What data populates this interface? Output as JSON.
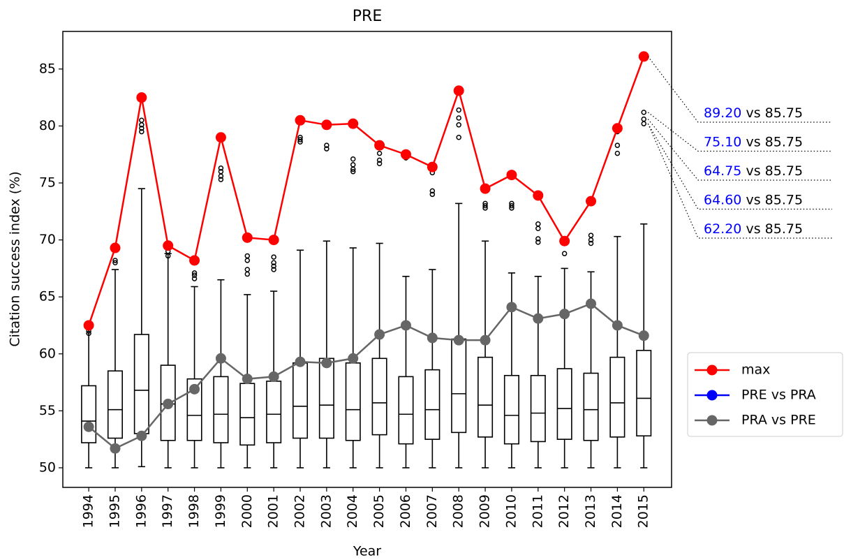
{
  "chart_data": {
    "type": "box",
    "title": "PRE",
    "x_label": "Year",
    "y_label": "Citation success index (%)",
    "categories": [
      "1994",
      "1995",
      "1996",
      "1997",
      "1998",
      "1999",
      "2000",
      "2001",
      "2002",
      "2003",
      "2004",
      "2005",
      "2006",
      "2007",
      "2008",
      "2009",
      "2010",
      "2011",
      "2012",
      "2013",
      "2014",
      "2015"
    ],
    "boxes": [
      {
        "low": 50,
        "q1": 52.2,
        "median": 54.1,
        "q3": 57.2,
        "high": 62.3,
        "outliers": [
          61.8,
          62.0
        ]
      },
      {
        "low": 50,
        "q1": 52.6,
        "median": 55.1,
        "q3": 58.5,
        "high": 67.4,
        "outliers": [
          68.0,
          68.2
        ]
      },
      {
        "low": 50.1,
        "q1": 53.0,
        "median": 56.8,
        "q3": 61.7,
        "high": 74.5,
        "outliers": [
          79.5,
          79.8,
          80.1,
          80.5
        ]
      },
      {
        "low": 50,
        "q1": 52.4,
        "median": 55.6,
        "q3": 59.0,
        "high": 68.8,
        "outliers": [
          68.6,
          69.0
        ]
      },
      {
        "low": 50,
        "q1": 52.4,
        "median": 54.6,
        "q3": 57.8,
        "high": 65.9,
        "outliers": [
          66.6,
          66.9,
          67.1
        ]
      },
      {
        "low": 50,
        "q1": 52.2,
        "median": 54.7,
        "q3": 58.0,
        "high": 66.5,
        "outliers": [
          75.3,
          75.6,
          76.0,
          76.3
        ]
      },
      {
        "low": 50,
        "q1": 52.0,
        "median": 54.4,
        "q3": 57.4,
        "high": 65.2,
        "outliers": [
          67.0,
          67.4,
          68.2,
          68.6
        ]
      },
      {
        "low": 50,
        "q1": 52.2,
        "median": 54.7,
        "q3": 57.6,
        "high": 65.5,
        "outliers": [
          67.4,
          67.7,
          68.0,
          68.5
        ]
      },
      {
        "low": 50,
        "q1": 52.6,
        "median": 55.4,
        "q3": 59.2,
        "high": 69.1,
        "outliers": [
          78.6,
          78.8,
          79.0
        ]
      },
      {
        "low": 50,
        "q1": 52.6,
        "median": 55.5,
        "q3": 59.6,
        "high": 69.9,
        "outliers": [
          78.0,
          78.3
        ]
      },
      {
        "low": 50,
        "q1": 52.4,
        "median": 55.1,
        "q3": 59.2,
        "high": 69.3,
        "outliers": [
          76.0,
          76.2,
          76.6,
          77.1
        ]
      },
      {
        "low": 50,
        "q1": 52.9,
        "median": 55.7,
        "q3": 59.6,
        "high": 69.7,
        "outliers": [
          76.7,
          77.0,
          77.6
        ]
      },
      {
        "low": 50,
        "q1": 52.1,
        "median": 54.7,
        "q3": 58.0,
        "high": 66.8,
        "outliers": [
          77.2,
          77.3
        ]
      },
      {
        "low": 50,
        "q1": 52.5,
        "median": 55.1,
        "q3": 58.6,
        "high": 67.4,
        "outliers": [
          74.0,
          74.3,
          75.9
        ]
      },
      {
        "low": 50,
        "q1": 53.1,
        "median": 56.5,
        "q3": 61.3,
        "high": 73.2,
        "outliers": [
          79.0,
          80.1,
          80.7,
          81.4
        ]
      },
      {
        "low": 50,
        "q1": 52.7,
        "median": 55.5,
        "q3": 59.7,
        "high": 69.9,
        "outliers": [
          72.8,
          73.0,
          73.2
        ]
      },
      {
        "low": 50,
        "q1": 52.1,
        "median": 54.6,
        "q3": 58.1,
        "high": 67.1,
        "outliers": [
          72.8,
          73.0,
          73.2
        ]
      },
      {
        "low": 50,
        "q1": 52.3,
        "median": 54.8,
        "q3": 58.1,
        "high": 66.8,
        "outliers": [
          69.8,
          70.1,
          71.0,
          71.4
        ]
      },
      {
        "low": 50,
        "q1": 52.5,
        "median": 55.2,
        "q3": 58.7,
        "high": 67.5,
        "outliers": [
          68.8
        ]
      },
      {
        "low": 50,
        "q1": 52.4,
        "median": 55.1,
        "q3": 58.3,
        "high": 67.2,
        "outliers": [
          69.7,
          70.0,
          70.4
        ]
      },
      {
        "low": 50,
        "q1": 52.7,
        "median": 55.7,
        "q3": 59.7,
        "high": 70.3,
        "outliers": [
          77.6,
          78.3,
          79.5
        ]
      },
      {
        "low": 50,
        "q1": 52.8,
        "median": 56.1,
        "q3": 60.3,
        "high": 71.4,
        "outliers": [
          80.2,
          80.6,
          81.2
        ]
      }
    ],
    "series": [
      {
        "name": "max",
        "color": "#ff0000",
        "values": [
          62.5,
          69.3,
          82.5,
          69.5,
          68.2,
          79.0,
          70.2,
          70.0,
          80.5,
          80.1,
          80.2,
          78.3,
          77.5,
          76.4,
          83.1,
          74.5,
          75.7,
          73.9,
          69.9,
          73.4,
          79.8,
          86.1
        ]
      },
      {
        "name": "PRE vs PRA",
        "color": "#0000ff",
        "values": [
          null,
          null,
          null,
          null,
          null,
          null,
          null,
          null,
          null,
          null,
          null,
          null,
          null,
          null,
          null,
          null,
          null,
          null,
          null,
          null,
          null,
          null
        ]
      },
      {
        "name": "PRA vs PRE",
        "color": "#666666",
        "values": [
          53.6,
          51.7,
          52.8,
          55.6,
          56.9,
          59.6,
          57.8,
          58.0,
          59.3,
          59.2,
          59.6,
          61.7,
          62.5,
          61.4,
          61.2,
          61.2,
          64.1,
          63.1,
          63.5,
          64.4,
          62.5,
          61.6
        ]
      }
    ],
    "annotations": [
      {
        "highlight": "89.20",
        "text": "vs 85.75"
      },
      {
        "highlight": "75.10",
        "text": "vs 85.75"
      },
      {
        "highlight": "64.75",
        "text": "vs 85.75"
      },
      {
        "highlight": "64.60",
        "text": "vs 85.75"
      },
      {
        "highlight": "62.20",
        "text": "vs 85.75"
      }
    ],
    "ylim": [
      48.28,
      88.3
    ],
    "yticks": [
      50,
      55,
      60,
      65,
      70,
      75,
      80,
      85
    ],
    "legend": "outside right"
  }
}
